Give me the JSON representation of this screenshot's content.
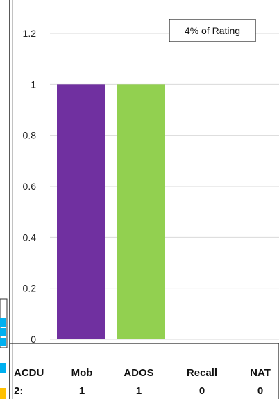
{
  "chart_data": {
    "type": "bar",
    "categories": [
      "Mob",
      "ADOS",
      "Recall",
      "NAT"
    ],
    "values": [
      1,
      1,
      0,
      0
    ],
    "bar_colors": [
      "#7030a0",
      "#92d050",
      "#ffc000",
      "#00b0f0"
    ],
    "ylim": [
      0,
      1.2
    ],
    "y_ticks": [
      "0",
      "0.2",
      "0.4",
      "0.6",
      "0.8",
      "1",
      "1.2"
    ],
    "grid": true,
    "annotation": "4% of Rating",
    "row_label_line1": "ACDU",
    "row_label_line2": "2:",
    "table_values": [
      "1",
      "1",
      "0",
      "0"
    ]
  }
}
